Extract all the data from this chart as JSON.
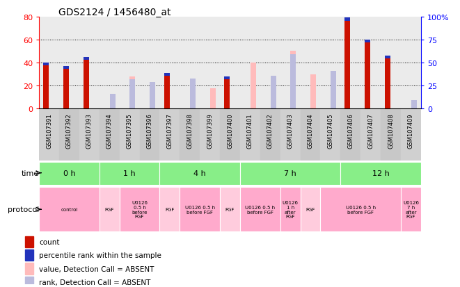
{
  "title": "GDS2124 / 1456480_at",
  "samples": [
    "GSM107391",
    "GSM107392",
    "GSM107393",
    "GSM107394",
    "GSM107395",
    "GSM107396",
    "GSM107397",
    "GSM107398",
    "GSM107399",
    "GSM107400",
    "GSM107401",
    "GSM107402",
    "GSM107403",
    "GSM107404",
    "GSM107405",
    "GSM107406",
    "GSM107407",
    "GSM107408",
    "GSM107409"
  ],
  "red_values": [
    40,
    37,
    45,
    0,
    0,
    0,
    31,
    0,
    0,
    28,
    0,
    0,
    0,
    0,
    0,
    79,
    60,
    46,
    0
  ],
  "blue_pct": [
    38,
    35,
    40,
    0,
    0,
    0,
    38,
    0,
    0,
    35,
    0,
    0,
    0,
    0,
    0,
    64,
    65,
    50,
    0
  ],
  "pink_values": [
    0,
    0,
    0,
    10,
    35,
    19,
    0,
    30,
    22,
    0,
    50,
    19,
    63,
    37,
    32,
    0,
    0,
    0,
    5
  ],
  "lightblue_pct": [
    0,
    0,
    0,
    16,
    32,
    29,
    0,
    33,
    0,
    0,
    0,
    36,
    59,
    0,
    41,
    0,
    0,
    0,
    9
  ],
  "time_groups": [
    {
      "label": "0 h",
      "start": 0,
      "end": 2
    },
    {
      "label": "1 h",
      "start": 3,
      "end": 5
    },
    {
      "label": "4 h",
      "start": 6,
      "end": 9
    },
    {
      "label": "7 h",
      "start": 10,
      "end": 14
    },
    {
      "label": "12 h",
      "start": 15,
      "end": 18
    }
  ],
  "protocol_groups": [
    {
      "label": "control",
      "start": 0,
      "end": 2,
      "is_fgf": false
    },
    {
      "label": "FGF",
      "start": 3,
      "end": 3,
      "is_fgf": true
    },
    {
      "label": "U0126\n0.5 h\nbefore\nFGF",
      "start": 4,
      "end": 5,
      "is_fgf": false
    },
    {
      "label": "FGF",
      "start": 6,
      "end": 6,
      "is_fgf": true
    },
    {
      "label": "U0126 0.5 h\nbefore FGF",
      "start": 7,
      "end": 8,
      "is_fgf": false
    },
    {
      "label": "FGF",
      "start": 9,
      "end": 9,
      "is_fgf": true
    },
    {
      "label": "U0126 0.5 h\nbefore FGF",
      "start": 10,
      "end": 11,
      "is_fgf": false
    },
    {
      "label": "U0126\n1 h\nafter\nFGF",
      "start": 12,
      "end": 12,
      "is_fgf": false
    },
    {
      "label": "FGF",
      "start": 13,
      "end": 13,
      "is_fgf": true
    },
    {
      "label": "U0126 0.5 h\nbefore FGF",
      "start": 14,
      "end": 17,
      "is_fgf": false
    },
    {
      "label": "U0126\n7 h\nafter\nFGF",
      "start": 18,
      "end": 18,
      "is_fgf": false
    }
  ],
  "ylim_left": [
    0,
    80
  ],
  "ylim_right": [
    0,
    100
  ],
  "left_yticks": [
    0,
    20,
    40,
    60,
    80
  ],
  "right_yticks": [
    0,
    25,
    50,
    75,
    100
  ],
  "red_color": "#cc1100",
  "blue_color": "#2233bb",
  "pink_color": "#ffbbbb",
  "lightblue_color": "#bbbbdd",
  "time_bg": "#88ee88",
  "fgf_color": "#ffccdd",
  "u0126_color": "#ffaacc"
}
